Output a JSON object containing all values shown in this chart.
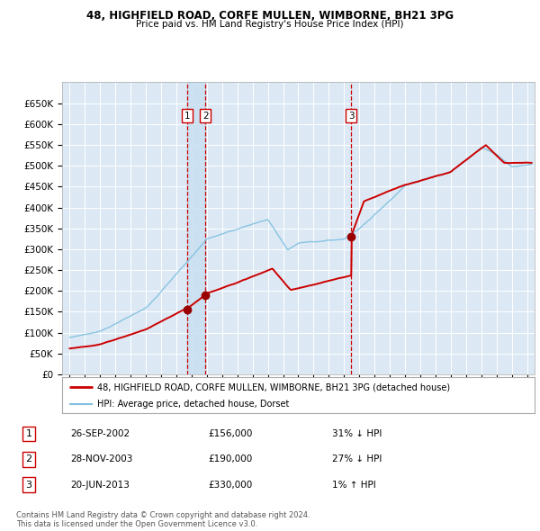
{
  "title1": "48, HIGHFIELD ROAD, CORFE MULLEN, WIMBORNE, BH21 3PG",
  "title2": "Price paid vs. HM Land Registry's House Price Index (HPI)",
  "background_color": "#ffffff",
  "plot_bg_color": "#dce9f5",
  "grid_color": "#ffffff",
  "hpi_line_color": "#7fbfdf",
  "price_line_color": "#cc0000",
  "sale_marker_color": "#990000",
  "vline_color": "#cc0000",
  "transactions": [
    {
      "label": "1",
      "date": "26-SEP-2002",
      "date_num": 2002.73,
      "price": 156000,
      "hpi_pct": "31% ↓ HPI"
    },
    {
      "label": "2",
      "date": "28-NOV-2003",
      "date_num": 2003.9,
      "price": 190000,
      "hpi_pct": "27% ↓ HPI"
    },
    {
      "label": "3",
      "date": "20-JUN-2013",
      "date_num": 2013.47,
      "price": 330000,
      "hpi_pct": "1% ↑ HPI"
    }
  ],
  "legend_property": "48, HIGHFIELD ROAD, CORFE MULLEN, WIMBORNE, BH21 3PG (detached house)",
  "legend_hpi": "HPI: Average price, detached house, Dorset",
  "footnote": "Contains HM Land Registry data © Crown copyright and database right 2024.\nThis data is licensed under the Open Government Licence v3.0.",
  "ylim": [
    0,
    700000
  ],
  "yticks": [
    0,
    50000,
    100000,
    150000,
    200000,
    250000,
    300000,
    350000,
    400000,
    450000,
    500000,
    550000,
    600000,
    650000
  ],
  "xlim_start": 1994.5,
  "xlim_end": 2025.5,
  "row_data": [
    [
      "1",
      "26-SEP-2002",
      "£156,000",
      "31% ↓ HPI"
    ],
    [
      "2",
      "28-NOV-2003",
      "£190,000",
      "27% ↓ HPI"
    ],
    [
      "3",
      "20-JUN-2013",
      "£330,000",
      "1% ↑ HPI"
    ]
  ]
}
